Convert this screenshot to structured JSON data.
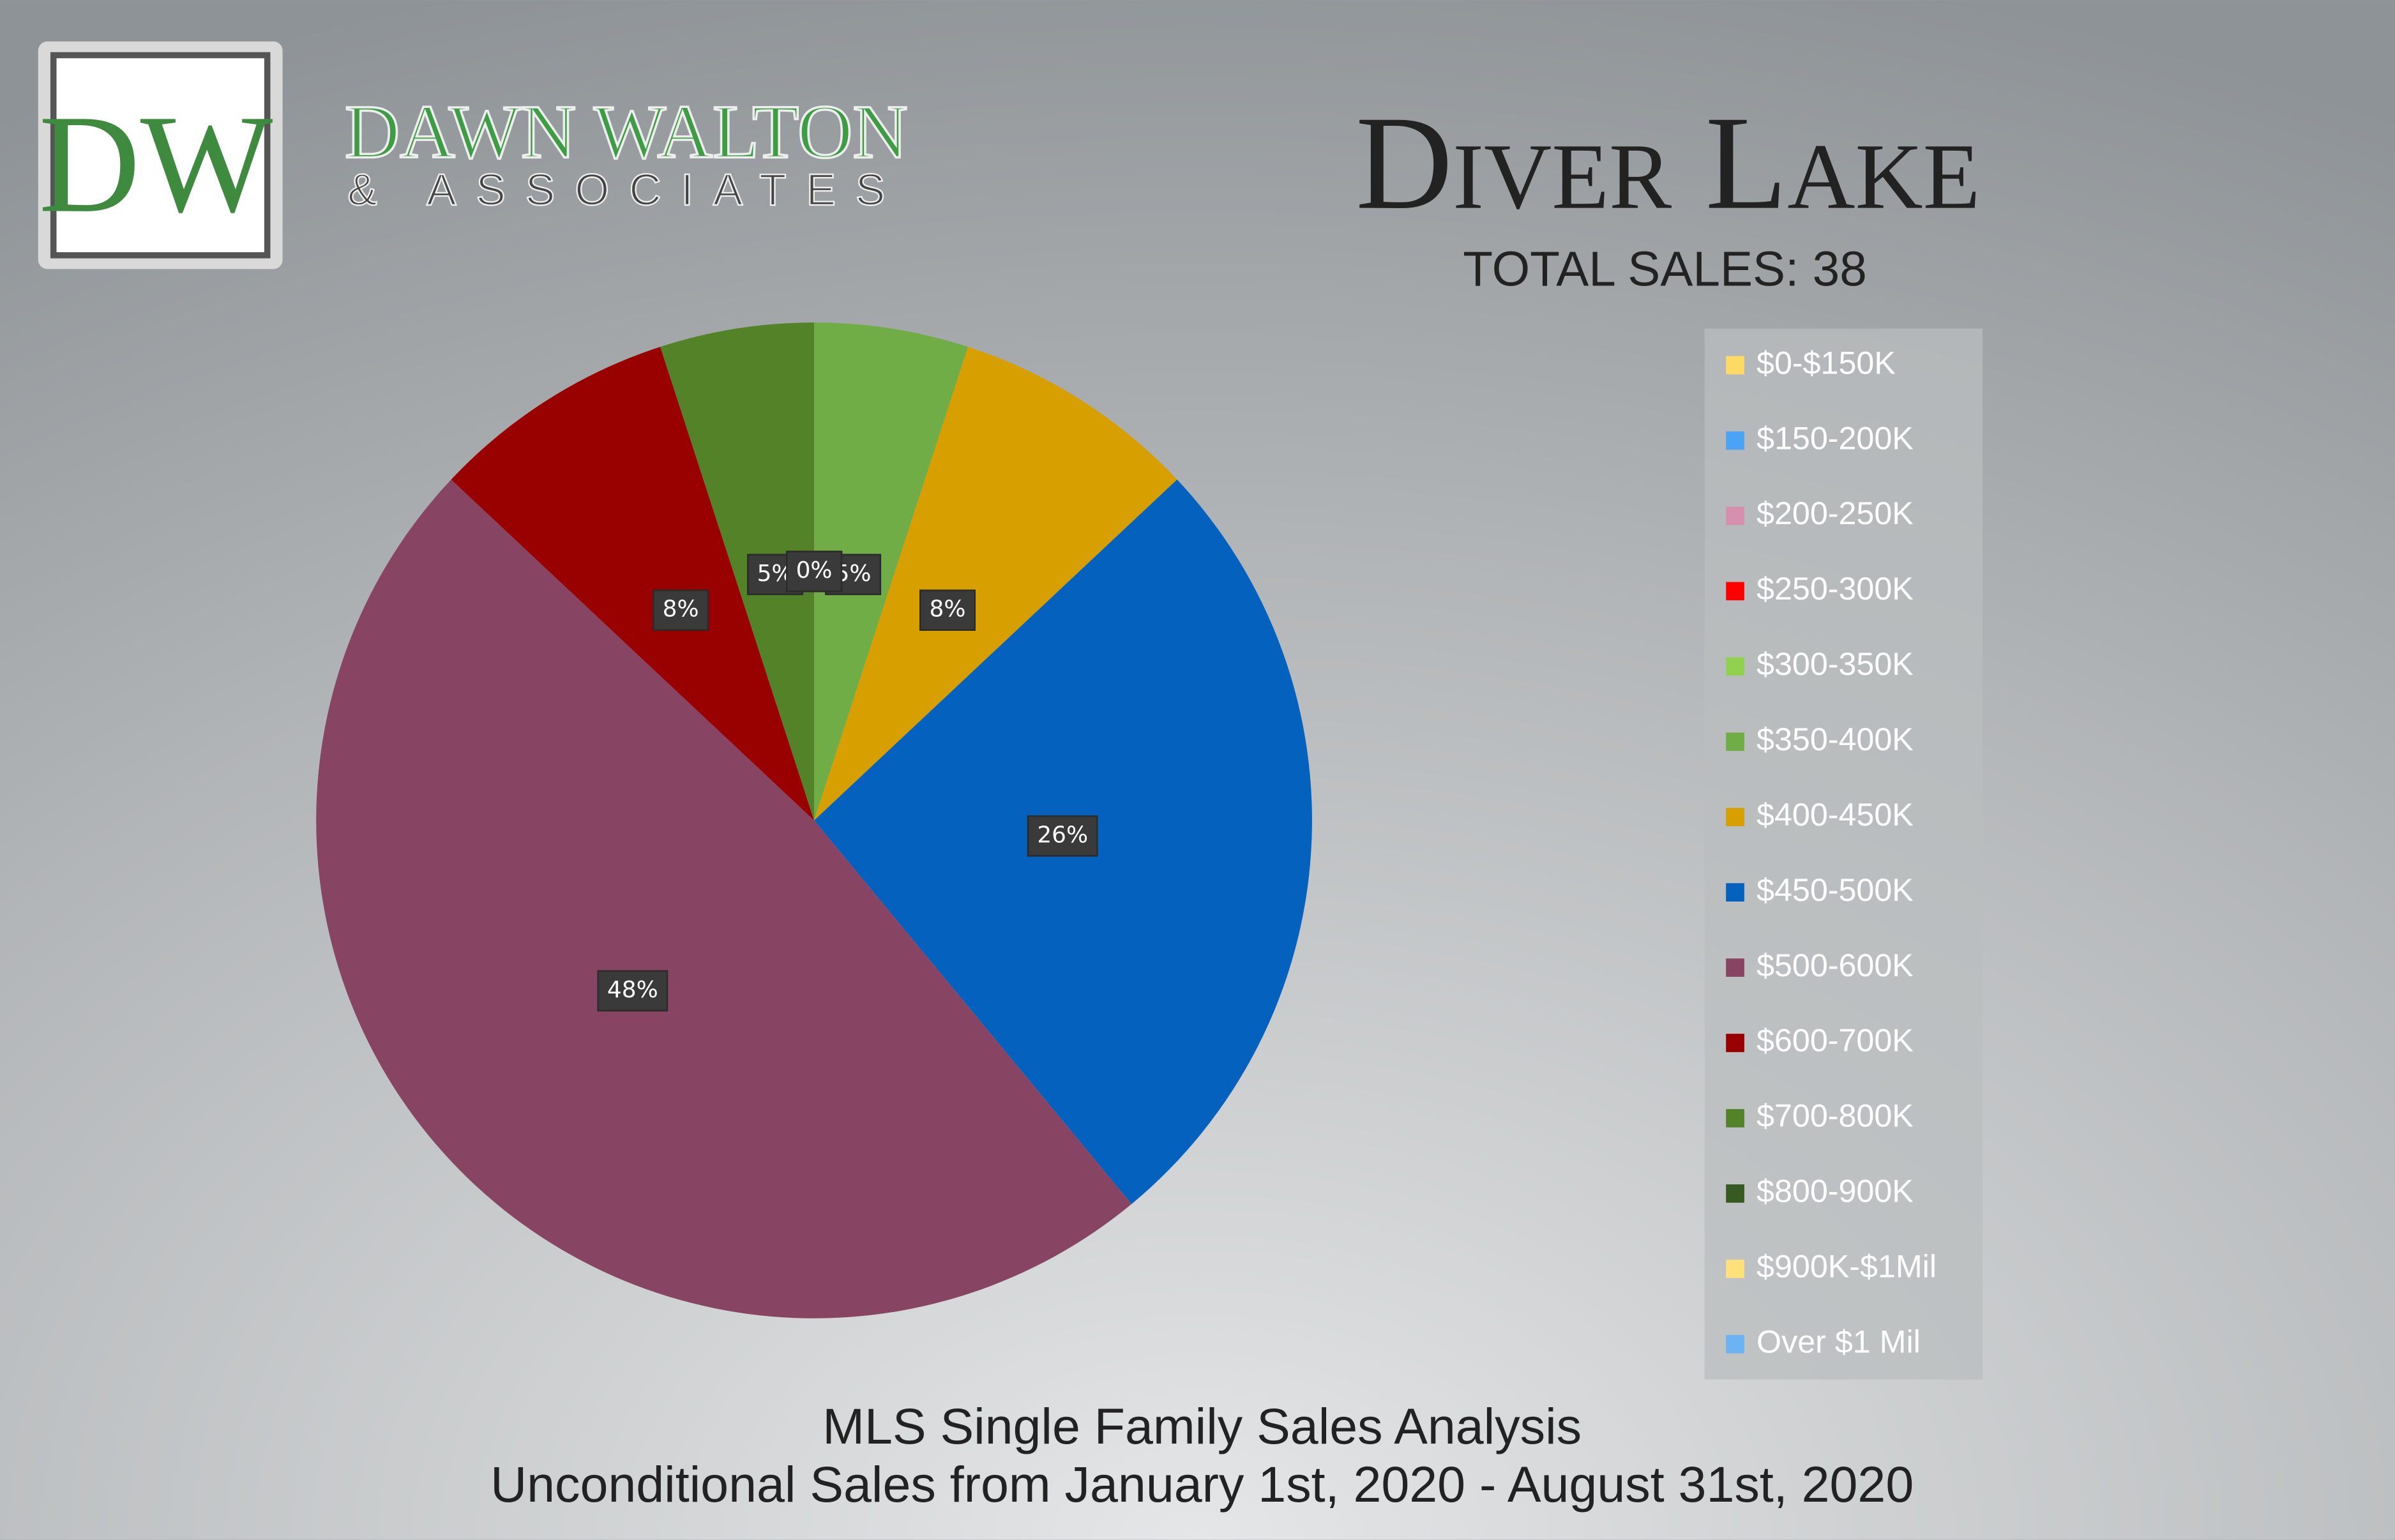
{
  "logo": {
    "initials": "DW",
    "name": "DAWN WALTON",
    "subname": "& ASSOCIATES"
  },
  "chart_data": {
    "type": "pie",
    "title": "Diver Lake",
    "subtitle": "TOTAL SALES: 38",
    "footer": [
      "MLS Single Family Sales Analysis",
      "Unconditional Sales from January 1st, 2020 - August 31st, 2020"
    ],
    "categories": [
      "$0-$150K",
      "$150-200K",
      "$200-250K",
      "$250-300K",
      "$300-350K",
      "$350-400K",
      "$400-450K",
      "$450-500K",
      "$500-600K",
      "$600-700K",
      "$700-800K",
      "$800-900K",
      "$900K-$1Mil",
      "Over $1 Mil"
    ],
    "values": [
      0,
      0,
      0,
      0,
      0,
      5,
      8,
      26,
      48,
      8,
      5,
      0,
      0,
      0
    ],
    "value_labels": [
      "0%",
      "0%",
      "0%",
      "0%",
      "0%",
      "5%",
      "8%",
      "26%",
      "48%",
      "8%",
      "5%",
      "0%",
      "0%",
      "0%"
    ],
    "colors": [
      "#ffd966",
      "#4aa3f5",
      "#d68fae",
      "#ff0000",
      "#92d050",
      "#70ad47",
      "#d7a000",
      "#0561be",
      "#874563",
      "#990000",
      "#548229",
      "#375a23",
      "#ffe07a",
      "#6cb2f5"
    ],
    "legend": "right"
  }
}
